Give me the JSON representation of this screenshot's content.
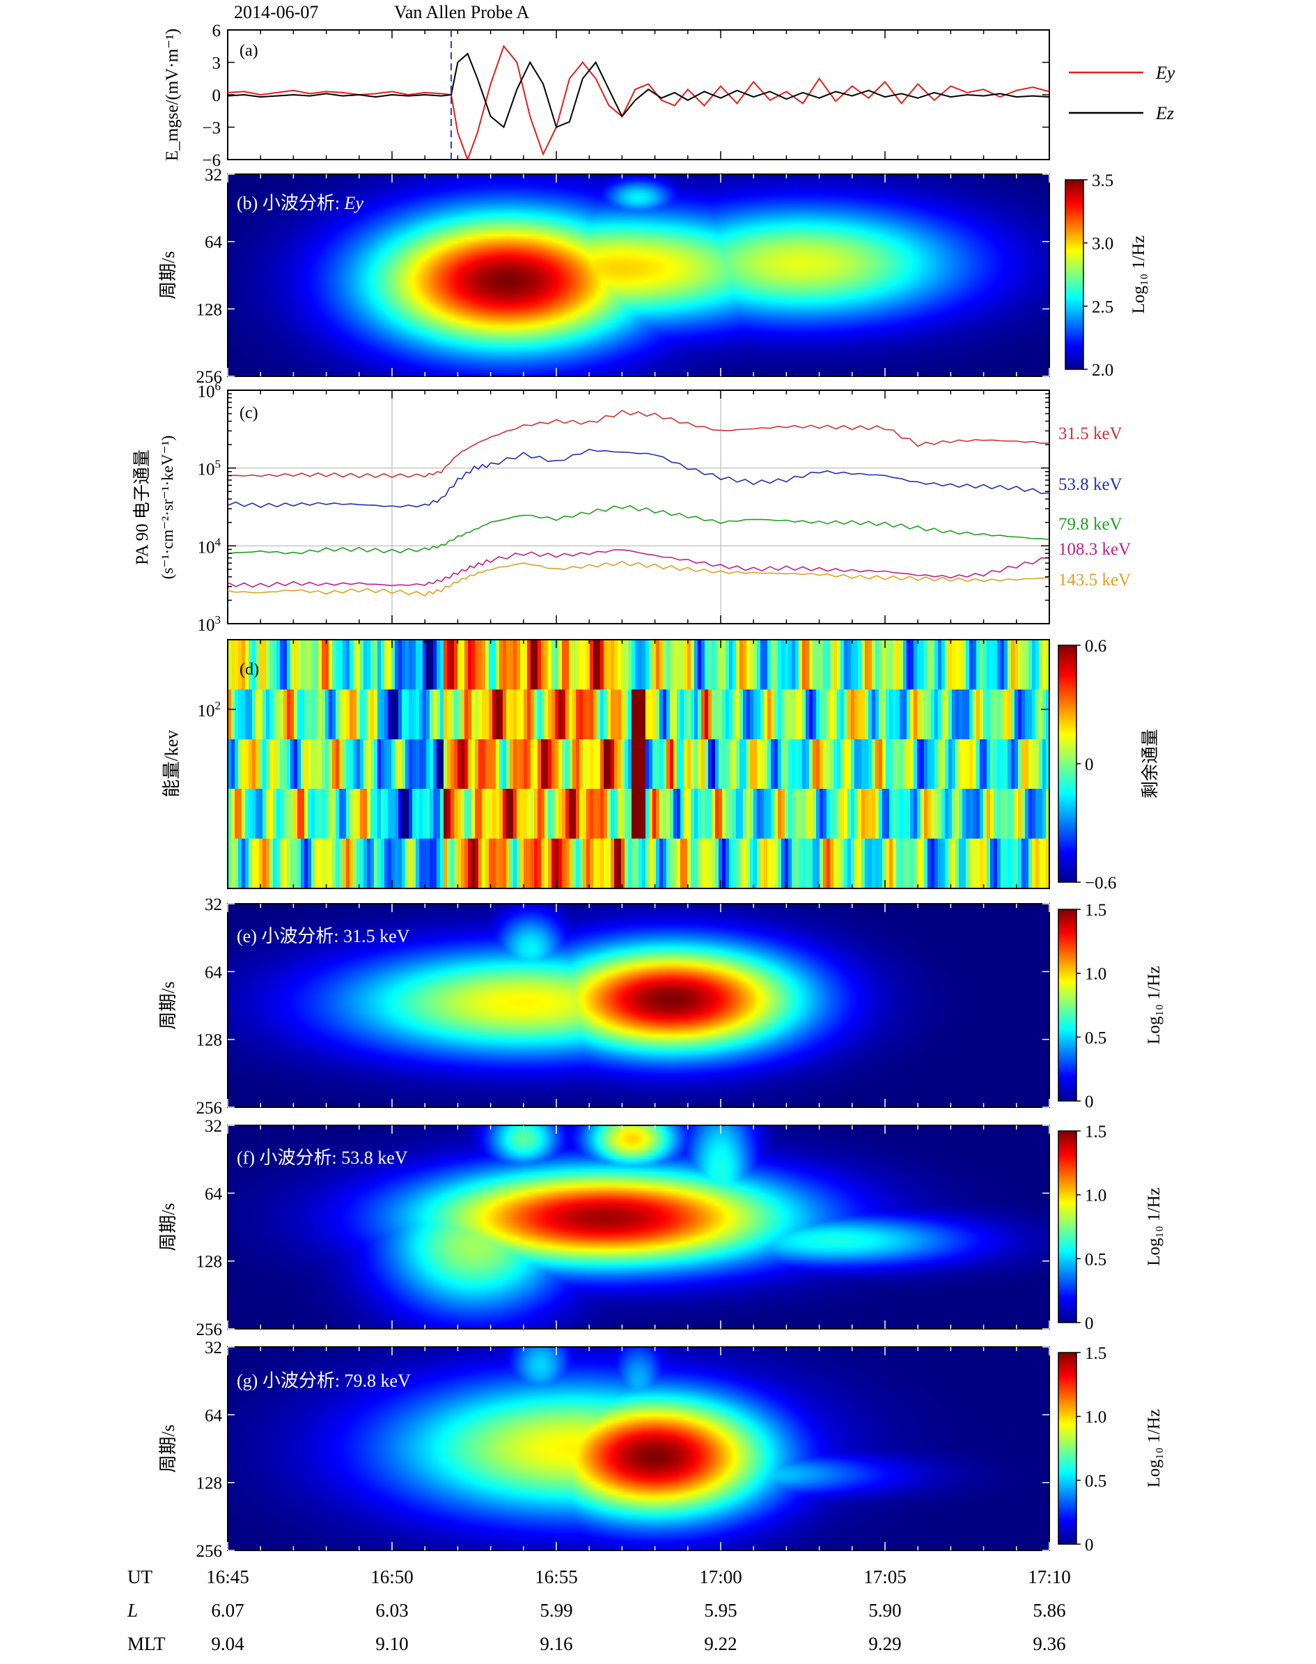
{
  "header": {
    "date": "2014-06-07",
    "probe": "Van Allen Probe A"
  },
  "colors": {
    "ey": "#e0201a",
    "ez": "#000000",
    "dashed": "#1f3fd6",
    "ch315": "#d03030",
    "ch538": "#2030b0",
    "ch798": "#20a020",
    "ch1083": "#c0208a",
    "ch1435": "#e0a020",
    "bg": "#00008f"
  },
  "time_axis": {
    "start_min": 0,
    "end_min": 25,
    "tick_labels": [
      "16:45",
      "16:50",
      "16:55",
      "17:00",
      "17:05",
      "17:10"
    ]
  },
  "footer": {
    "rows": [
      {
        "label": "UT",
        "values": [
          "16:45",
          "16:50",
          "16:55",
          "17:00",
          "17:05",
          "17:10"
        ]
      },
      {
        "label": "L",
        "values": [
          "6.07",
          "6.03",
          "5.99",
          "5.95",
          "5.90",
          "5.86"
        ]
      },
      {
        "label": "MLT",
        "values": [
          "9.04",
          "9.10",
          "9.16",
          "9.22",
          "9.29",
          "9.36"
        ]
      }
    ]
  },
  "chart_data": [
    {
      "panel": "a",
      "type": "line",
      "tag": "(a)",
      "ylabel": "E_mgse/(mV·m⁻¹)",
      "ylim": [
        -6,
        6
      ],
      "yticks": [
        "6",
        "3",
        "0",
        "−3",
        "−6"
      ],
      "event_marker_min": 6.8,
      "x_minutes": [
        0,
        0.5,
        1,
        1.5,
        2,
        2.5,
        3,
        3.5,
        4,
        4.5,
        5,
        5.5,
        6,
        6.5,
        6.8,
        7,
        7.3,
        7.6,
        8,
        8.4,
        8.8,
        9.2,
        9.6,
        10,
        10.4,
        10.8,
        11.2,
        11.6,
        12,
        12.4,
        12.8,
        13.2,
        13.6,
        14,
        14.5,
        15,
        15.5,
        16,
        16.5,
        17,
        17.5,
        18,
        18.5,
        19,
        19.5,
        20,
        20.5,
        21,
        21.5,
        22,
        22.5,
        23,
        23.5,
        24,
        24.5,
        25
      ],
      "series": [
        {
          "name": "Ey",
          "values": [
            0.2,
            0.3,
            0.0,
            0.2,
            0.4,
            0.1,
            0.3,
            0.2,
            0.0,
            0.1,
            0.3,
            0.0,
            0.2,
            0.1,
            0.0,
            -3.5,
            -6,
            -3.5,
            1.0,
            4.5,
            3.0,
            -2.0,
            -5.5,
            -3.0,
            1.5,
            3.0,
            1.5,
            -1.0,
            -2.0,
            0.5,
            1.0,
            -0.5,
            -1.0,
            0.5,
            -1.0,
            0.8,
            -0.8,
            1.2,
            -0.5,
            0.3,
            -0.8,
            1.5,
            -0.6,
            0.8,
            -0.3,
            1.2,
            -0.8,
            1.0,
            -0.5,
            0.8,
            0.2,
            0.5,
            -0.2,
            0.4,
            0.7,
            0.3
          ]
        },
        {
          "name": "Ez",
          "values": [
            -0.1,
            0.0,
            -0.2,
            -0.1,
            0.0,
            -0.1,
            0.1,
            -0.1,
            0.0,
            -0.2,
            0.0,
            -0.1,
            0.0,
            -0.1,
            0.0,
            3.0,
            3.8,
            1.5,
            -2.0,
            -3.0,
            0.5,
            3.0,
            1.0,
            -3.0,
            -2.5,
            1.5,
            3.0,
            0.5,
            -2.0,
            -0.5,
            0.5,
            -0.3,
            0.2,
            -0.5,
            0.3,
            -0.3,
            0.4,
            -0.2,
            0.3,
            -0.4,
            0.2,
            -0.3,
            0.3,
            -0.1,
            0.4,
            -0.2,
            0.1,
            -0.3,
            0.2,
            -0.2,
            0.0,
            -0.1,
            0.1,
            -0.2,
            -0.1,
            -0.2
          ]
        }
      ]
    },
    {
      "panel": "b",
      "type": "heatmap",
      "tag": "(b) 小波分析: ",
      "tag_var": "Ey",
      "ylabel": "周期/s",
      "yticks": [
        "32",
        "64",
        "128",
        "256"
      ],
      "colorbar": {
        "ticks": [
          "3.5",
          "3.0",
          "2.5",
          "2.0"
        ],
        "label": "Log₁₀ 1/Hz",
        "range": [
          2.0,
          3.5
        ]
      },
      "blobs": [
        {
          "t": 8.5,
          "p": 96,
          "st": 3.0,
          "sp": 0.18,
          "a": 3.5
        },
        {
          "t": 12.0,
          "p": 84,
          "st": 4.0,
          "sp": 0.15,
          "a": 3.0
        },
        {
          "t": 17.5,
          "p": 80,
          "st": 3.5,
          "sp": 0.15,
          "a": 2.9
        },
        {
          "t": 12.5,
          "p": 40,
          "st": 0.8,
          "sp": 0.05,
          "a": 2.55
        }
      ]
    },
    {
      "panel": "c",
      "type": "line",
      "tag": "(c)",
      "ylabel": "PA 90 电子通量",
      "ylabel2": "(s⁻¹·cm⁻²·sr⁻¹·keV⁻¹)",
      "ylog": true,
      "ylim": [
        1000,
        1000000
      ],
      "yticks": [
        {
          "base": "10",
          "exp": "6"
        },
        {
          "base": "10",
          "exp": "5"
        },
        {
          "base": "10",
          "exp": "4"
        },
        {
          "base": "10",
          "exp": "3"
        }
      ],
      "x_minutes": [
        0,
        1,
        2,
        3,
        4,
        5,
        6,
        6.5,
        7,
        7.5,
        8,
        9,
        10,
        11,
        12,
        13,
        14,
        15,
        16,
        17,
        18,
        19,
        20,
        21,
        22,
        23,
        24,
        25
      ],
      "series": [
        {
          "name": "31.5 keV",
          "values": [
            80000,
            80000,
            82000,
            82000,
            80000,
            80000,
            80000,
            90000,
            150000,
            200000,
            250000,
            350000,
            400000,
            380000,
            520000,
            480000,
            370000,
            300000,
            320000,
            340000,
            340000,
            330000,
            330000,
            200000,
            220000,
            230000,
            220000,
            210000
          ]
        },
        {
          "name": "53.8 keV",
          "values": [
            35000,
            33000,
            34000,
            35000,
            34000,
            32000,
            33000,
            40000,
            70000,
            100000,
            110000,
            150000,
            120000,
            170000,
            160000,
            150000,
            100000,
            75000,
            65000,
            70000,
            90000,
            85000,
            80000,
            65000,
            60000,
            58000,
            55000,
            48000
          ]
        },
        {
          "name": "79.8 keV",
          "values": [
            8000,
            8500,
            8000,
            9000,
            9000,
            8500,
            9000,
            10000,
            13000,
            16000,
            20000,
            25000,
            22000,
            27000,
            32000,
            28000,
            24000,
            20000,
            22000,
            21000,
            20000,
            20000,
            19000,
            17000,
            15000,
            14000,
            13000,
            12000
          ]
        },
        {
          "name": "108.3 keV",
          "values": [
            3200,
            3100,
            3300,
            3200,
            3300,
            3100,
            3200,
            3600,
            4500,
            5500,
            6500,
            8000,
            7500,
            8000,
            9000,
            7500,
            6500,
            5500,
            5000,
            5200,
            5000,
            4800,
            4700,
            4200,
            4000,
            4300,
            5500,
            7000
          ]
        },
        {
          "name": "143.5 keV",
          "values": [
            2600,
            2500,
            2700,
            2500,
            2700,
            2600,
            2400,
            2700,
            3500,
            4300,
            5000,
            6000,
            5000,
            5500,
            6000,
            5500,
            5000,
            4600,
            4500,
            4400,
            4300,
            4000,
            3900,
            3800,
            3700,
            3600,
            3700,
            3900
          ]
        }
      ]
    },
    {
      "panel": "d",
      "type": "heatmap",
      "tag": "(d)",
      "ylabel": "能量/kev",
      "yticks": [
        {
          "base": "10",
          "exp": "2"
        }
      ],
      "colorbar": {
        "ticks": [
          "0.6",
          "0",
          "−0.6"
        ],
        "label": "剩余通量",
        "range": [
          -0.6,
          0.6
        ]
      }
    },
    {
      "panel": "e",
      "type": "heatmap",
      "tag": "(e) 小波分析: 31.5 keV",
      "ylabel": "周期/s",
      "yticks": [
        "32",
        "64",
        "128",
        "256"
      ],
      "colorbar": {
        "ticks": [
          "1.5",
          "1.0",
          "0.5",
          "0"
        ],
        "label": "Log₁₀ 1/Hz",
        "range": [
          0,
          1.5
        ]
      },
      "blobs": [
        {
          "t": 13.5,
          "p": 85,
          "st": 2.8,
          "sp": 0.14,
          "a": 1.5
        },
        {
          "t": 9.0,
          "p": 88,
          "st": 4.0,
          "sp": 0.14,
          "a": 0.95
        },
        {
          "t": 9.2,
          "p": 50,
          "st": 0.8,
          "sp": 0.1,
          "a": 0.55
        }
      ]
    },
    {
      "panel": "f",
      "type": "heatmap",
      "tag": "(f) 小波分析: 53.8 keV",
      "ylabel": "周期/s",
      "yticks": [
        "32",
        "64",
        "128",
        "256"
      ],
      "colorbar": {
        "ticks": [
          "1.5",
          "1.0",
          "0.5",
          "0"
        ],
        "label": "Log₁₀ 1/Hz",
        "range": [
          0,
          1.5
        ]
      },
      "blobs": [
        {
          "t": 11.5,
          "p": 82,
          "st": 4.0,
          "sp": 0.13,
          "a": 1.45
        },
        {
          "t": 12.3,
          "p": 36,
          "st": 1.0,
          "sp": 0.08,
          "a": 1.0
        },
        {
          "t": 9.0,
          "p": 36,
          "st": 0.8,
          "sp": 0.08,
          "a": 0.7
        },
        {
          "t": 18.5,
          "p": 104,
          "st": 3.0,
          "sp": 0.07,
          "a": 0.6
        },
        {
          "t": 7.5,
          "p": 110,
          "st": 2.0,
          "sp": 0.18,
          "a": 0.8
        },
        {
          "t": 15.0,
          "p": 50,
          "st": 0.8,
          "sp": 0.2,
          "a": 0.6
        }
      ]
    },
    {
      "panel": "g",
      "type": "heatmap",
      "tag": "(g) 小波分析: 79.8 keV",
      "ylabel": "周期/s",
      "yticks": [
        "32",
        "64",
        "128",
        "256"
      ],
      "colorbar": {
        "ticks": [
          "1.5",
          "1.0",
          "0.5",
          "0"
        ],
        "label": "Log₁₀ 1/Hz",
        "range": [
          0,
          1.5
        ]
      },
      "blobs": [
        {
          "t": 13.0,
          "p": 98,
          "st": 2.5,
          "sp": 0.16,
          "a": 1.5
        },
        {
          "t": 10.5,
          "p": 90,
          "st": 4.0,
          "sp": 0.18,
          "a": 0.95
        },
        {
          "t": 9.5,
          "p": 38,
          "st": 0.7,
          "sp": 0.1,
          "a": 0.5
        },
        {
          "t": 12.5,
          "p": 45,
          "st": 0.6,
          "sp": 0.12,
          "a": 0.45
        },
        {
          "t": 16.0,
          "p": 118,
          "st": 3.0,
          "sp": 0.06,
          "a": 0.5
        }
      ]
    }
  ]
}
